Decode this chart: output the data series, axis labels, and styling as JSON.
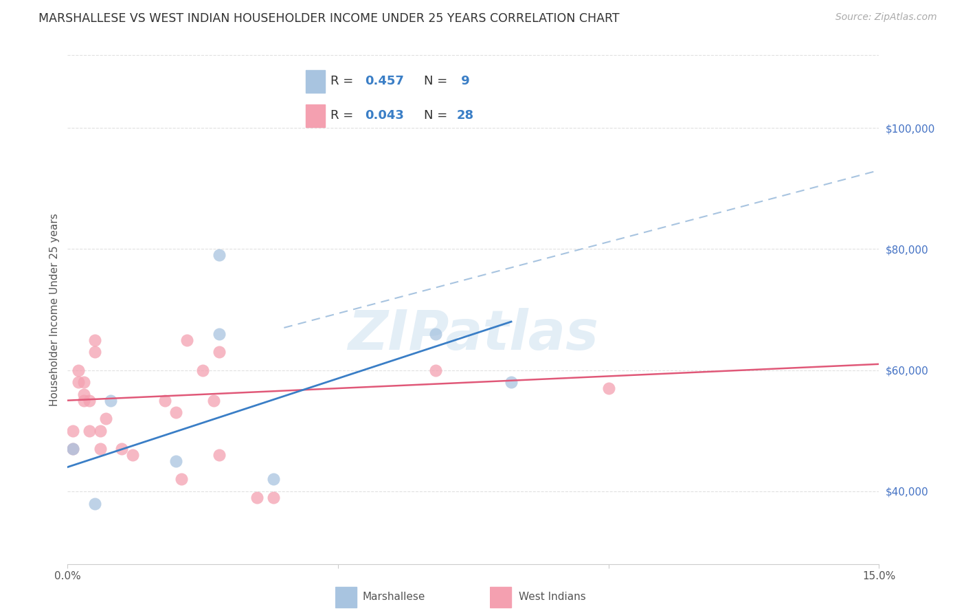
{
  "title": "MARSHALLESE VS WEST INDIAN HOUSEHOLDER INCOME UNDER 25 YEARS CORRELATION CHART",
  "source": "Source: ZipAtlas.com",
  "ylabel": "Householder Income Under 25 years",
  "watermark": "ZIPatlas",
  "ytick_labels": [
    "$100,000",
    "$80,000",
    "$60,000",
    "$40,000"
  ],
  "ytick_values": [
    100000,
    80000,
    60000,
    40000
  ],
  "xlim": [
    0.0,
    0.15
  ],
  "ylim": [
    28000,
    112000
  ],
  "marshallese_color": "#a8c4e0",
  "westindian_color": "#f4a0b0",
  "marshallese_line_color": "#3a7ec6",
  "westindian_line_color": "#e05878",
  "dashed_line_color": "#a8c4e0",
  "background_color": "#ffffff",
  "grid_color": "#e0e0e0",
  "marshallese_x": [
    0.001,
    0.005,
    0.008,
    0.02,
    0.028,
    0.028,
    0.038,
    0.068,
    0.082
  ],
  "marshallese_y": [
    47000,
    38000,
    55000,
    45000,
    66000,
    79000,
    42000,
    66000,
    58000
  ],
  "westindian_x": [
    0.001,
    0.001,
    0.002,
    0.002,
    0.003,
    0.003,
    0.003,
    0.004,
    0.004,
    0.005,
    0.005,
    0.006,
    0.006,
    0.007,
    0.01,
    0.012,
    0.018,
    0.02,
    0.021,
    0.022,
    0.025,
    0.027,
    0.028,
    0.028,
    0.035,
    0.038,
    0.068,
    0.1
  ],
  "westindian_y": [
    47000,
    50000,
    58000,
    60000,
    55000,
    56000,
    58000,
    55000,
    50000,
    63000,
    65000,
    47000,
    50000,
    52000,
    47000,
    46000,
    55000,
    53000,
    42000,
    65000,
    60000,
    55000,
    63000,
    46000,
    39000,
    39000,
    60000,
    57000
  ],
  "marshallese_trend": [
    0.0,
    0.082,
    44000,
    68000
  ],
  "westindian_trend": [
    0.0,
    0.15,
    55000,
    61000
  ],
  "dashed_trend": [
    0.04,
    0.15,
    67000,
    93000
  ],
  "title_fontsize": 12.5,
  "source_fontsize": 10,
  "axis_label_fontsize": 11,
  "tick_fontsize": 11,
  "legend_fontsize": 13,
  "marker_size": 13,
  "marker_alpha": 0.75,
  "ytick_color": "#4472C4",
  "xtick_color": "#555555"
}
